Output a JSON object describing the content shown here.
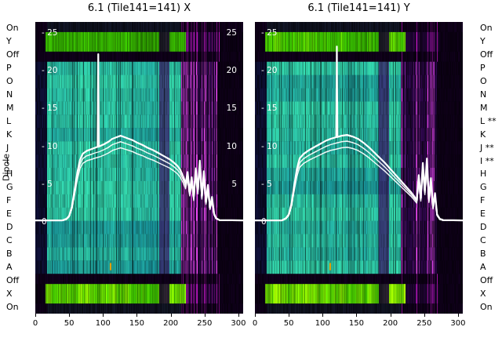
{
  "dipole_axis_label": "Dipole",
  "colors": {
    "plot_bg": "#0e0018",
    "edge_blue": "#0c1e50",
    "teal_dark": "#0c6e86",
    "teal_bright": "#30c8a0",
    "band_purple": "#381060",
    "purple": "#3c0a64",
    "magenta": "#c818c8",
    "magenta_bright": "#ff50ff",
    "green": "#3ccc00",
    "yellow": "#dce800",
    "dark_tint": "#12503c",
    "line": "#ffffff",
    "text": "#000000"
  },
  "left_labels": [
    "On",
    "Y",
    "Off",
    "P",
    "O",
    "N",
    "M",
    "L",
    "K",
    "J",
    "I",
    "H",
    "G",
    "F",
    "E",
    "D",
    "C",
    "B",
    "A",
    "Off",
    "X",
    "On"
  ],
  "right_labels": [
    "On",
    "Y",
    "Off",
    "P",
    "O",
    "N",
    "M",
    "L **",
    "K",
    "J **",
    "I **",
    "H",
    "G",
    "F",
    "E",
    "D",
    "C",
    "B",
    "A",
    "Off",
    "X",
    "On"
  ],
  "x_tick_labels": [
    "0",
    "50",
    "100",
    "150",
    "200",
    "250",
    "300"
  ],
  "y_ticks_left": [
    {
      "value": 25,
      "label": "- 25"
    },
    {
      "value": 20,
      "label": "- 20"
    },
    {
      "value": 15,
      "label": "- 15"
    },
    {
      "value": 10,
      "label": "- 10"
    },
    {
      "value": 5,
      "label": "- 5"
    },
    {
      "value": 0,
      "label": "0"
    }
  ],
  "y_ticks_right": [
    {
      "value": 25,
      "label": "25"
    },
    {
      "value": 20,
      "label": "20"
    },
    {
      "value": 15,
      "label": "15"
    },
    {
      "value": 10,
      "label": "10"
    },
    {
      "value": 5,
      "label": "5"
    }
  ],
  "chart_data": [
    {
      "type": "heatmap",
      "title": "6.1 (Tile141=141) X",
      "ylabel": "Dipole",
      "xlim": [
        0,
        307
      ],
      "x_ticks": [
        0,
        50,
        100,
        150,
        200,
        250,
        300
      ],
      "y_value_ticks": [
        25,
        20,
        15,
        10,
        5,
        0
      ],
      "y_value_range": [
        0,
        26.5
      ],
      "rows": [
        "On",
        "Y",
        "Off",
        "P",
        "O",
        "N",
        "M",
        "L",
        "K",
        "J",
        "I",
        "H",
        "G",
        "F",
        "E",
        "D",
        "C",
        "B",
        "A",
        "Off",
        "X",
        "On"
      ],
      "row_types": [
        "dark",
        "green",
        "off",
        "teal",
        "teal",
        "teal",
        "teal",
        "teal",
        "teal",
        "teal",
        "teal",
        "teal",
        "teal",
        "teal",
        "teal",
        "teal",
        "teal",
        "teal",
        "teal",
        "off",
        "green",
        "dark"
      ],
      "regions": {
        "data_start": 17,
        "data_end": 215,
        "noise_end": 268,
        "green_start": 15,
        "green_end": 222,
        "purple_band": [
          183,
          197
        ]
      },
      "marker": {
        "x": 110,
        "row": 18,
        "color": "#e8a000"
      },
      "overlay_lines": {
        "factors": [
          1,
          0.93,
          0.86
        ],
        "spike": {
          "x": 93,
          "peak": 22.2
        },
        "base_points": [
          [
            0,
            0.2
          ],
          [
            40,
            0.2
          ],
          [
            46,
            0.4
          ],
          [
            50,
            0.8
          ],
          [
            54,
            2.0
          ],
          [
            58,
            4.2
          ],
          [
            62,
            6.5
          ],
          [
            66,
            8.2
          ],
          [
            70,
            9.0
          ],
          [
            76,
            9.4
          ],
          [
            82,
            9.6
          ],
          [
            88,
            9.8
          ],
          [
            95,
            10.0
          ],
          [
            102,
            10.3
          ],
          [
            108,
            10.6
          ],
          [
            114,
            11.0
          ],
          [
            120,
            11.2
          ],
          [
            126,
            11.4
          ],
          [
            132,
            11.2
          ],
          [
            138,
            11.0
          ],
          [
            144,
            10.8
          ],
          [
            150,
            10.5
          ],
          [
            158,
            10.2
          ],
          [
            166,
            9.8
          ],
          [
            174,
            9.5
          ],
          [
            182,
            9.1
          ],
          [
            190,
            8.7
          ],
          [
            198,
            8.3
          ],
          [
            204,
            7.9
          ],
          [
            210,
            7.4
          ],
          [
            214,
            6.9
          ],
          [
            218,
            6.1
          ],
          [
            222,
            5.1
          ],
          [
            225,
            6.6
          ],
          [
            228,
            4.0
          ],
          [
            231,
            5.9
          ],
          [
            234,
            3.3
          ],
          [
            237,
            7.1
          ],
          [
            240,
            4.3
          ],
          [
            243,
            8.1
          ],
          [
            246,
            3.5
          ],
          [
            249,
            6.7
          ],
          [
            252,
            2.7
          ],
          [
            255,
            4.9
          ],
          [
            258,
            1.9
          ],
          [
            261,
            3.3
          ],
          [
            264,
            1.1
          ],
          [
            267,
            0.5
          ],
          [
            272,
            0.25
          ],
          [
            307,
            0.2
          ]
        ]
      }
    },
    {
      "type": "heatmap",
      "title": "6.1 (Tile141=141) Y",
      "ylabel": "Dipole",
      "xlim": [
        0,
        307
      ],
      "x_ticks": [
        0,
        50,
        100,
        150,
        200,
        250,
        300
      ],
      "y_value_ticks": [
        25,
        20,
        15,
        10,
        5,
        0
      ],
      "y_value_range": [
        0,
        26.5
      ],
      "rows": [
        "On",
        "Y",
        "Off",
        "P",
        "O",
        "N",
        "M",
        "L",
        "K",
        "J",
        "I",
        "H",
        "G",
        "F",
        "E",
        "D",
        "C",
        "B",
        "A",
        "Off",
        "X",
        "On"
      ],
      "row_types": [
        "dark",
        "green",
        "off",
        "teal",
        "teal",
        "teal",
        "teal",
        "teal",
        "teal",
        "teal",
        "teal",
        "teal",
        "teal",
        "teal",
        "teal",
        "teal",
        "teal",
        "teal",
        "teal",
        "off",
        "green",
        "dark"
      ],
      "regions": {
        "data_start": 17,
        "data_end": 215,
        "noise_end": 268,
        "green_start": 15,
        "green_end": 222,
        "purple_band": [
          183,
          197
        ]
      },
      "marker": {
        "x": 110,
        "row": 18,
        "color": "#e8a000"
      },
      "overlay_lines": {
        "factors": [
          1,
          0.93,
          0.86
        ],
        "spike": {
          "x": 121,
          "peak": 23.2
        },
        "base_points": [
          [
            0,
            0.2
          ],
          [
            40,
            0.2
          ],
          [
            46,
            0.5
          ],
          [
            50,
            1.0
          ],
          [
            54,
            2.4
          ],
          [
            58,
            4.8
          ],
          [
            62,
            7.0
          ],
          [
            66,
            8.4
          ],
          [
            72,
            9.0
          ],
          [
            80,
            9.5
          ],
          [
            88,
            9.9
          ],
          [
            96,
            10.3
          ],
          [
            104,
            10.7
          ],
          [
            112,
            11.0
          ],
          [
            120,
            11.2
          ],
          [
            128,
            11.4
          ],
          [
            136,
            11.5
          ],
          [
            144,
            11.3
          ],
          [
            152,
            11.0
          ],
          [
            160,
            10.5
          ],
          [
            168,
            9.9
          ],
          [
            176,
            9.2
          ],
          [
            184,
            8.5
          ],
          [
            192,
            7.8
          ],
          [
            200,
            7.0
          ],
          [
            208,
            6.2
          ],
          [
            216,
            5.4
          ],
          [
            224,
            4.6
          ],
          [
            230,
            4.0
          ],
          [
            235,
            3.4
          ],
          [
            239,
            2.9
          ],
          [
            242,
            6.2
          ],
          [
            245,
            3.2
          ],
          [
            248,
            7.8
          ],
          [
            251,
            4.2
          ],
          [
            254,
            8.4
          ],
          [
            257,
            3.0
          ],
          [
            260,
            5.8
          ],
          [
            263,
            2.0
          ],
          [
            266,
            3.8
          ],
          [
            269,
            1.0
          ],
          [
            273,
            0.4
          ],
          [
            278,
            0.25
          ],
          [
            307,
            0.2
          ]
        ]
      }
    }
  ]
}
